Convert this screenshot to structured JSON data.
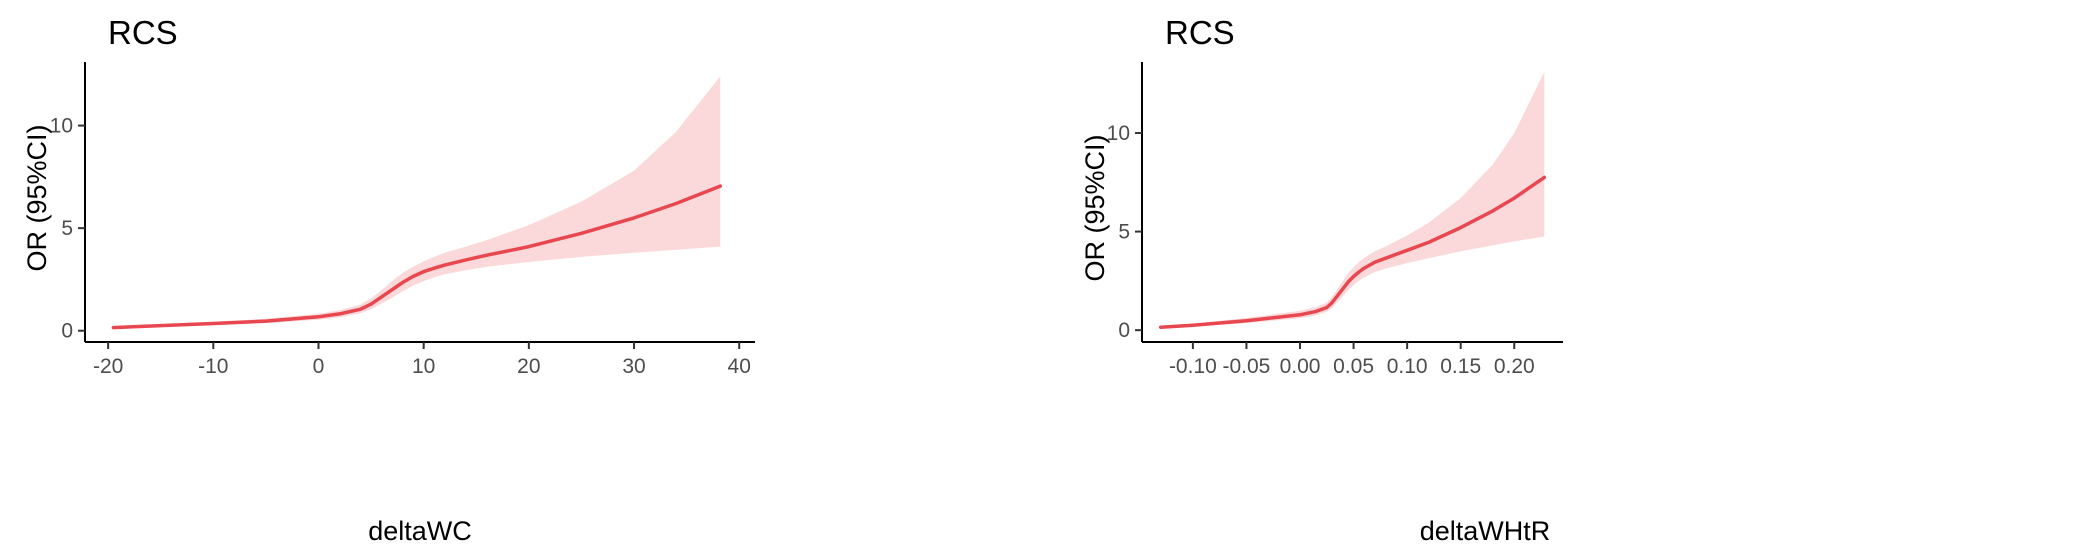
{
  "chart_data": [
    {
      "type": "line",
      "title": "RCS",
      "xlabel": "deltaWC",
      "ylabel": "OR (95%CI)",
      "xlim": [
        -22.2,
        41.5
      ],
      "ylim": [
        -0.55,
        13.1
      ],
      "x_ticks": [
        -20,
        -10,
        0,
        10,
        20,
        30,
        40
      ],
      "x_tick_labels": [
        "-20",
        "-10",
        "0",
        "10",
        "20",
        "30",
        "40"
      ],
      "y_ticks": [
        0,
        5,
        10
      ],
      "y_tick_labels": [
        "0",
        "5",
        "10"
      ],
      "grid": false,
      "legend": "none",
      "line_color": "#e8474f",
      "band_color": "#fbd9da",
      "series": [
        {
          "x": [
            -19.5,
            -15,
            -10,
            -5,
            0,
            2,
            4,
            5,
            6,
            7,
            8,
            9,
            10,
            11,
            12,
            14,
            16,
            20,
            25,
            30,
            34,
            38.2
          ],
          "y": [
            0.15,
            0.25,
            0.35,
            0.47,
            0.68,
            0.82,
            1.05,
            1.3,
            1.65,
            2.0,
            2.35,
            2.65,
            2.88,
            3.05,
            3.2,
            3.45,
            3.68,
            4.1,
            4.75,
            5.5,
            6.2,
            7.05
          ],
          "lower": [
            0.1,
            0.19,
            0.27,
            0.37,
            0.53,
            0.65,
            0.85,
            1.05,
            1.32,
            1.6,
            1.92,
            2.2,
            2.42,
            2.6,
            2.75,
            2.95,
            3.12,
            3.35,
            3.6,
            3.8,
            3.95,
            4.1
          ],
          "upper": [
            0.22,
            0.32,
            0.44,
            0.58,
            0.83,
            1.0,
            1.28,
            1.58,
            1.98,
            2.42,
            2.82,
            3.12,
            3.38,
            3.6,
            3.8,
            4.1,
            4.42,
            5.15,
            6.3,
            7.8,
            9.7,
            12.4
          ]
        }
      ]
    },
    {
      "type": "line",
      "title": "RCS",
      "xlabel": "deltaWHtR",
      "ylabel": "OR (95%CI)",
      "xlim": [
        -0.1475,
        0.2455
      ],
      "ylim": [
        -0.6,
        13.6
      ],
      "x_ticks": [
        -0.1,
        -0.05,
        0.0,
        0.05,
        0.1,
        0.15,
        0.2
      ],
      "x_tick_labels": [
        "-0.10",
        "-0.05",
        "0.00",
        "0.05",
        "0.10",
        "0.15",
        "0.20"
      ],
      "y_ticks": [
        0,
        5,
        10
      ],
      "y_tick_labels": [
        "0",
        "5",
        "10"
      ],
      "grid": false,
      "legend": "none",
      "line_color": "#e8474f",
      "band_color": "#fbd9da",
      "series": [
        {
          "x": [
            -0.13,
            -0.1,
            -0.05,
            0.0,
            0.015,
            0.025,
            0.03,
            0.035,
            0.04,
            0.045,
            0.05,
            0.055,
            0.06,
            0.07,
            0.08,
            0.1,
            0.12,
            0.15,
            0.18,
            0.2,
            0.228
          ],
          "y": [
            0.15,
            0.25,
            0.48,
            0.78,
            0.95,
            1.15,
            1.4,
            1.75,
            2.1,
            2.45,
            2.72,
            2.95,
            3.15,
            3.45,
            3.65,
            4.05,
            4.45,
            5.2,
            6.05,
            6.7,
            7.75
          ],
          "lower": [
            0.1,
            0.18,
            0.36,
            0.6,
            0.75,
            0.93,
            1.13,
            1.42,
            1.72,
            2.02,
            2.28,
            2.5,
            2.68,
            2.95,
            3.12,
            3.4,
            3.65,
            4.0,
            4.3,
            4.5,
            4.75
          ],
          "upper": [
            0.22,
            0.33,
            0.62,
            0.98,
            1.18,
            1.4,
            1.7,
            2.1,
            2.5,
            2.9,
            3.2,
            3.45,
            3.68,
            4.0,
            4.25,
            4.8,
            5.45,
            6.7,
            8.4,
            10.0,
            13.1
          ]
        }
      ]
    }
  ]
}
